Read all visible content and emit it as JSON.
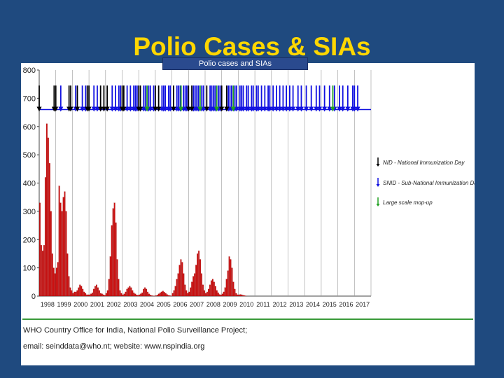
{
  "slide": {
    "title": "Polio Cases & SIAs",
    "chart_header": "Polio cases and SIAs"
  },
  "colors": {
    "background": "#1f4a7f",
    "title": "#ffd700",
    "bars": "#cc1010",
    "nid": "#000000",
    "snid": "#1010e0",
    "mopup": "#20a020"
  },
  "footer": {
    "line1": "WHO Country Office for India, National Polio Surveillance Project;",
    "line2": "email: seinddata@who.nt; website: www.nspindia.org"
  },
  "chart_data": {
    "type": "bar",
    "title": "",
    "xlabel": "",
    "ylabel": "",
    "ylim": [
      0,
      800
    ],
    "yticks": [
      0,
      100,
      200,
      300,
      400,
      500,
      600,
      700,
      800
    ],
    "year_labels": [
      "1998",
      "1999",
      "2000",
      "2001",
      "2002",
      "2003",
      "2004",
      "2005",
      "2006",
      "2007",
      "2008",
      "2009",
      "2010",
      "2011",
      "2012",
      "2013",
      "2014",
      "2015",
      "2016",
      "2017"
    ],
    "bars_per_year": 12,
    "series": [
      {
        "name": "",
        "values": [
          330,
          180,
          160,
          180,
          420,
          610,
          560,
          470,
          300,
          150,
          100,
          80,
          100,
          120,
          390,
          330,
          300,
          350,
          370,
          300,
          150,
          70,
          30,
          20,
          10,
          15,
          15,
          20,
          30,
          40,
          35,
          25,
          15,
          10,
          5,
          5,
          5,
          8,
          12,
          25,
          35,
          40,
          30,
          20,
          10,
          8,
          5,
          3,
          10,
          20,
          60,
          140,
          250,
          310,
          330,
          260,
          130,
          60,
          20,
          10,
          5,
          8,
          15,
          25,
          30,
          35,
          30,
          20,
          12,
          8,
          4,
          3,
          5,
          8,
          12,
          25,
          30,
          25,
          15,
          8,
          4,
          2,
          1,
          1,
          2,
          4,
          8,
          12,
          15,
          18,
          14,
          10,
          6,
          3,
          2,
          1,
          10,
          20,
          35,
          60,
          80,
          110,
          130,
          120,
          80,
          40,
          20,
          10,
          15,
          30,
          50,
          70,
          80,
          110,
          150,
          160,
          130,
          80,
          40,
          20,
          10,
          15,
          25,
          40,
          55,
          60,
          50,
          35,
          20,
          12,
          6,
          4,
          8,
          15,
          30,
          60,
          90,
          140,
          130,
          100,
          50,
          25,
          10,
          5,
          5,
          6,
          5,
          3,
          2,
          1,
          0,
          0,
          0,
          0,
          0,
          0,
          0,
          0,
          0,
          0,
          0,
          0,
          0,
          0,
          0,
          0,
          0,
          0,
          0,
          0,
          0,
          0,
          0,
          0,
          0,
          0,
          0,
          0,
          0,
          0,
          0,
          0,
          0,
          0,
          0,
          0,
          0,
          0,
          0,
          0,
          0,
          0,
          0,
          0,
          0,
          0,
          0,
          0,
          0,
          0,
          0,
          0,
          0,
          0,
          0,
          0,
          0,
          0,
          0,
          0,
          0,
          0,
          0,
          0,
          0,
          0,
          0,
          0,
          0,
          0,
          0,
          0,
          0,
          0,
          0,
          0,
          0,
          0,
          0,
          0,
          0,
          0,
          0,
          0,
          0,
          0,
          0,
          0,
          0,
          0
        ]
      }
    ],
    "sia_rounds": {
      "nid": [
        1998.0,
        1998.9,
        1999.0,
        1999.8,
        1999.9,
        2000.3,
        2000.9,
        2001.0,
        2001.7,
        2001.9,
        2002.1,
        2003.0,
        2003.1,
        2004.0,
        2004.1,
        2005.0,
        2005.2,
        2006.1,
        2007.0,
        2007.2,
        2008.1,
        2009.0,
        2009.3
      ],
      "snid": [
        1999.3,
        2000.2,
        2000.6,
        2000.8,
        2001.3,
        2001.5,
        2002.4,
        2002.6,
        2002.8,
        2002.9,
        2003.3,
        2003.5,
        2003.7,
        2003.8,
        2003.9,
        2004.3,
        2004.4,
        2004.6,
        2004.7,
        2004.9,
        2005.4,
        2005.5,
        2005.6,
        2005.8,
        2005.9,
        2006.3,
        2006.4,
        2006.5,
        2006.7,
        2006.8,
        2006.9,
        2007.3,
        2007.4,
        2007.5,
        2007.6,
        2007.8,
        2007.9,
        2008.3,
        2008.4,
        2008.5,
        2008.6,
        2008.8,
        2008.9,
        2009.4,
        2009.5,
        2009.6,
        2009.8,
        2009.9,
        2010.1,
        2010.2,
        2010.3,
        2010.5,
        2010.6,
        2010.8,
        2010.9,
        2011.1,
        2011.2,
        2011.4,
        2011.6,
        2011.8,
        2011.9,
        2012.1,
        2012.3,
        2012.5,
        2012.7,
        2012.9,
        2013.1,
        2013.3,
        2013.6,
        2013.8,
        2014.1,
        2014.4,
        2014.7,
        2014.9,
        2015.2,
        2015.5,
        2015.8,
        2016.1,
        2016.3,
        2016.6,
        2016.9,
        2017.0,
        2017.2
      ],
      "mopup": [
        2004.5,
        2006.55,
        2007.7,
        2008.7,
        2009.7,
        2015.7
      ]
    },
    "legend": {
      "placement": "right",
      "items": [
        {
          "label": "NID - National Immunization Day",
          "color": "#000000"
        },
        {
          "label": "SNID - Sub-National Immunization Day",
          "color": "#1010e0"
        },
        {
          "label": "Large scale mop-up",
          "color": "#20a020"
        }
      ]
    },
    "grid": "vertical"
  }
}
